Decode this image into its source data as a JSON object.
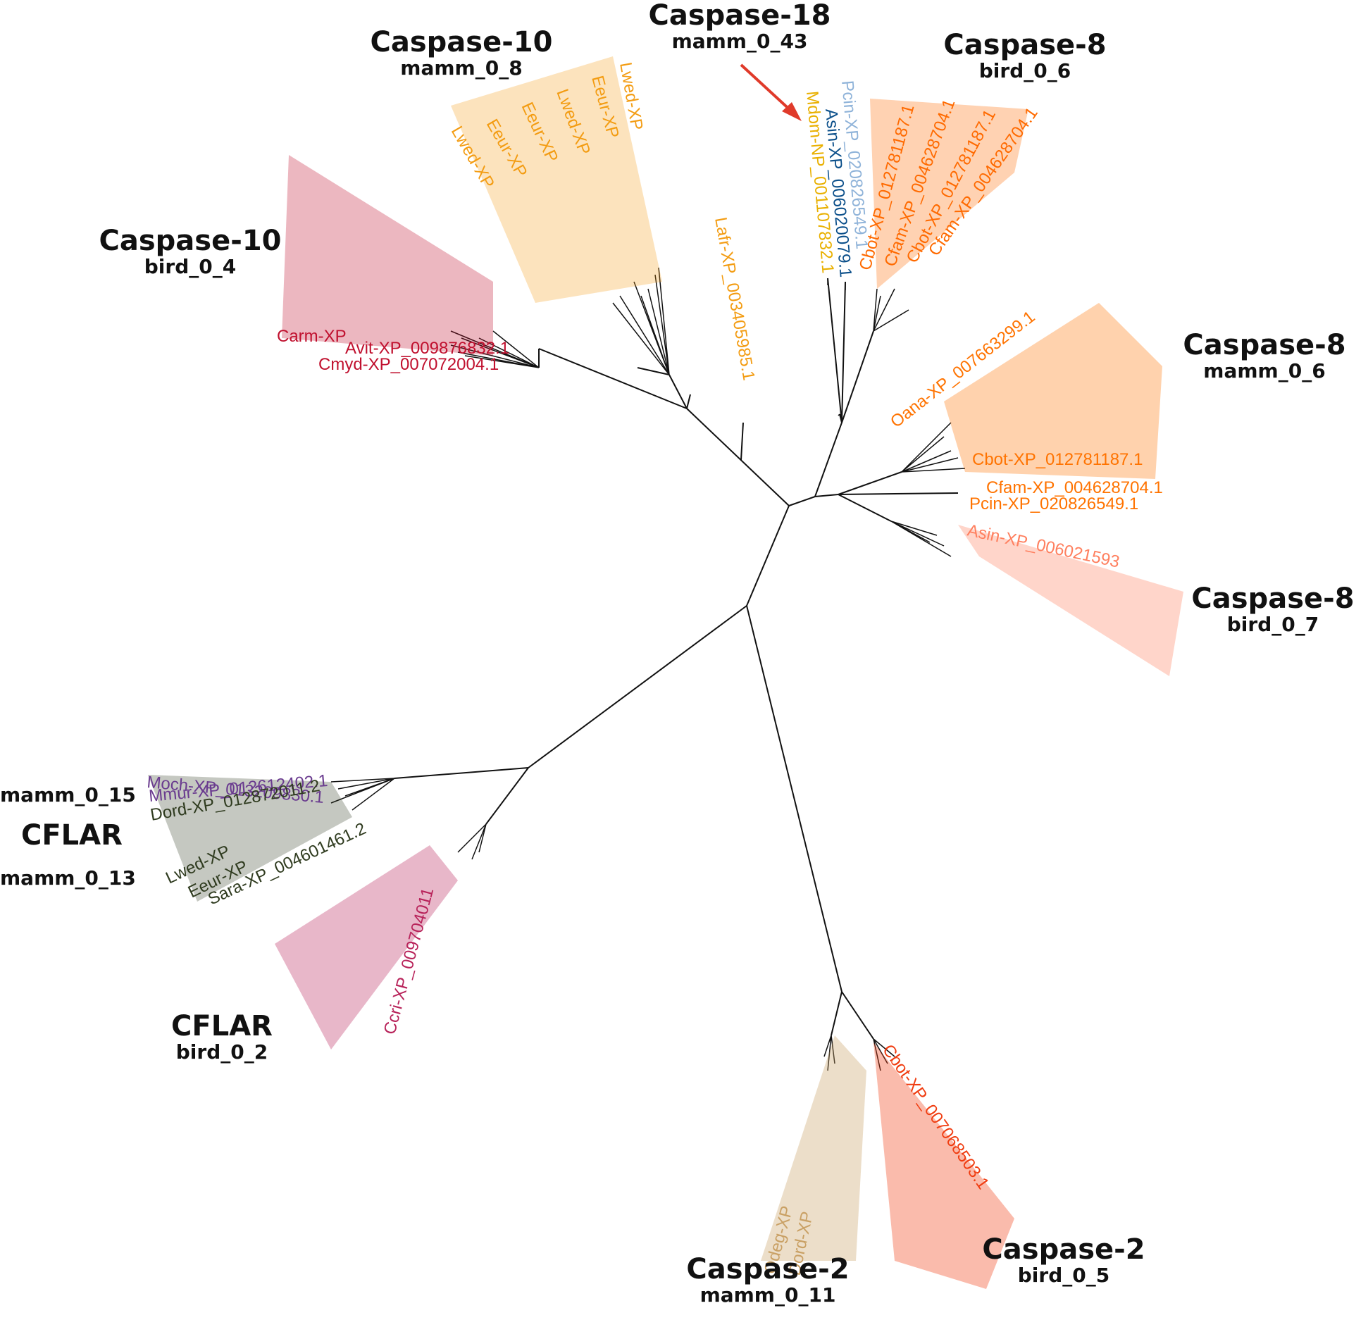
{
  "colors": {
    "branch": "#111111",
    "arrow": "#e03a2a",
    "caspase10_mamm": "#f39c12",
    "caspase10_bird": "#c0102e",
    "caspase18_mamm": "#e9b000",
    "caspase18_bird_light": "#8fb3d9",
    "caspase18_bird_dark": "#0b4f8a",
    "caspase8_bird_0_6": "#ff6a00",
    "caspase8_mamm": "#ff7300",
    "caspase8_bird_0_7": "#ff7f5e",
    "caspase2_bird": "#f03c10",
    "caspase2_mamm": "#c9a064",
    "cflar_mamm_0_15": "#6a3b8f",
    "cflar_mamm_0_13": "#2f3b1f",
    "cflar_bird": "#b8235a"
  },
  "annotations": {
    "casp18_mamm": {
      "title": "Caspase-18",
      "code": "mamm_0_43"
    },
    "casp10_mamm": {
      "title": "Caspase-10",
      "code": "mamm_0_8"
    },
    "casp8_bird6": {
      "title": "Caspase-8",
      "code": "bird_0_6"
    },
    "casp10_bird": {
      "title": "Caspase-10",
      "code": "bird_0_4"
    },
    "casp8_mamm": {
      "title": "Caspase-8",
      "code": "mamm_0_6"
    },
    "casp8_bird7": {
      "title": "Caspase-8",
      "code": "bird_0_7"
    },
    "cflar_mamm": {
      "code_top": "mamm_0_15",
      "title": "CFLAR",
      "code_bottom": "mamm_0_13"
    },
    "cflar_bird": {
      "title": "CFLAR",
      "code": "bird_0_2"
    },
    "casp2_mamm": {
      "title": "Caspase-2",
      "code": "mamm_0_11"
    },
    "casp2_bird": {
      "title": "Caspase-2",
      "code": "bird_0_5"
    }
  },
  "tips": {
    "lafr": "Lafr-XP_003405985.1",
    "mdom": "Mdom-NP_001107832.1",
    "pcin_casp18": "Pcin-XP_020826549.1",
    "asin": "Asin-XP_006020079.1",
    "cmyd": "Cmyd-XP_007072004.1",
    "avit": "Avit-XP_009876832.1",
    "carm": "Carm-XP",
    "oana": "Oana-XP_007663299.1",
    "pcin": "Pcin-XP_020826549.1",
    "cbot": "Cbot-XP_012781187.1",
    "cfam": "Cfam-XP_004628704.1",
    "asin8": "Asin-XP_006021593",
    "moch": "Moch-XP_013209830.1",
    "mmur": "Mmur-XP_012612402.1",
    "dord": "Dord-XP_012872011.2",
    "lwed": "Lwed-XP",
    "eeur": "Eeur-XP",
    "sara": "Sara-XP_004601461.2",
    "ccri": "Ccri-XP_009704011",
    "casp2b": "Cbot-XP_007068503.1",
    "odeg": "Odeg-XP",
    "dord2": "Dord-XP"
  }
}
